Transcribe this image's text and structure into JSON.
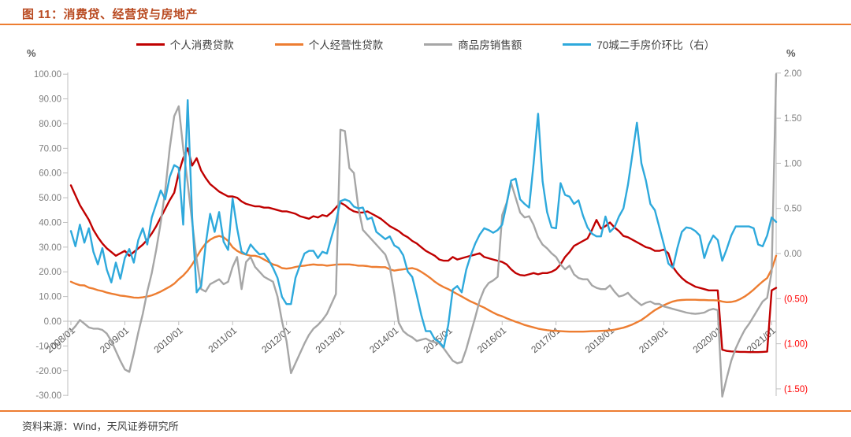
{
  "title": "图 11：消费贷、经营贷与房地产",
  "source": "资料来源：Wind，天风证券研究所",
  "colors": {
    "title_accent": "#b94a21",
    "rule_orange": "#ed7d31",
    "axis_line": "#bfbfbf",
    "tick_label": "#7f7f7f",
    "x_label": "#595959",
    "negative_right_label": "#ff0000"
  },
  "left_axis": {
    "unit": "%",
    "tick_labels": [
      "100.00",
      "90.00",
      "80.00",
      "70.00",
      "60.00",
      "50.00",
      "40.00",
      "30.00",
      "20.00",
      "10.00",
      "0.00",
      "-10.00",
      "-20.00",
      "-30.00"
    ],
    "tick_values": [
      100,
      90,
      80,
      70,
      60,
      50,
      40,
      30,
      20,
      10,
      0,
      -10,
      -20,
      -30
    ]
  },
  "right_axis": {
    "unit": "%",
    "tick_labels": [
      "2.00",
      "1.50",
      "1.00",
      "0.50",
      "0.00",
      "(0.50)",
      "(1.00)",
      "(1.50)"
    ],
    "tick_values": [
      2.0,
      1.5,
      1.0,
      0.5,
      0.0,
      -0.5,
      -1.0,
      -1.5
    ]
  },
  "chart_data": {
    "type": "line",
    "title": "消费贷、经营贷与房地产",
    "x_start": "2008/01",
    "x_end": "2021/02",
    "months_total": 158,
    "x_tick_labels": [
      "2008/01",
      "2009/01",
      "2010/01",
      "2011/01",
      "2012/01",
      "2013/01",
      "2014/01",
      "2015/01",
      "2016/01",
      "2017/01",
      "2018/01",
      "2019/01",
      "2020/01",
      "2021/01"
    ],
    "x_tick_month_index": [
      0,
      12,
      24,
      36,
      48,
      60,
      72,
      84,
      96,
      108,
      120,
      132,
      144,
      156
    ],
    "left_ylim": [
      -30,
      100
    ],
    "right_ylim": [
      -1.5,
      2.0
    ],
    "grid": "zero-line-only",
    "legend_position": "top",
    "series": [
      {
        "name": "个人消费贷款",
        "color": "#c00000",
        "axis": "left",
        "values": [
          55,
          51,
          47,
          44,
          41,
          37,
          34,
          31.5,
          29.5,
          28,
          26.5,
          27.5,
          28.5,
          26.5,
          28,
          29.5,
          31,
          33,
          35.5,
          38.5,
          42,
          45.5,
          49,
          52,
          60,
          66,
          70,
          63,
          66,
          61,
          58,
          55.5,
          54,
          52.5,
          51.5,
          50.5,
          50.5,
          50,
          48.5,
          47.5,
          47,
          46.5,
          46.5,
          46,
          46,
          45.5,
          45,
          44.5,
          44.5,
          44,
          43.5,
          42.5,
          42,
          41.5,
          42.5,
          42,
          43,
          42.5,
          44,
          46,
          48,
          47,
          45.5,
          44.5,
          44,
          44,
          44.5,
          43.5,
          42.5,
          41.5,
          40,
          38.5,
          37.5,
          36.5,
          35,
          34,
          32.5,
          31.5,
          30,
          28.5,
          27.5,
          26.5,
          25,
          24.5,
          24.5,
          26,
          25,
          25.5,
          26,
          26.5,
          27,
          27.5,
          26,
          25.5,
          25,
          24.5,
          24,
          23,
          21,
          19.5,
          18.7,
          18.5,
          19,
          19.5,
          19,
          19.5,
          19.5,
          20,
          21,
          23,
          26,
          28,
          30.5,
          31.5,
          32.5,
          33.5,
          37,
          41,
          37.5,
          38.5,
          40,
          38,
          36.5,
          34.5,
          34,
          33,
          32,
          31,
          30,
          29.5,
          28.5,
          28.5,
          29,
          27.5,
          22,
          19.5,
          17.5,
          16,
          15,
          14,
          13.5,
          13,
          12.5,
          12.5,
          12.5,
          -11.5,
          -12,
          -12.2,
          -12.3,
          -12.4,
          -12.4,
          -12.5,
          -12.5,
          -12.5,
          -12.4,
          -12.3,
          12.5,
          13.5
        ]
      },
      {
        "name": "个人经营性贷款",
        "color": "#ed7d31",
        "axis": "left",
        "values": [
          16,
          15.2,
          14.6,
          14.5,
          13.6,
          13.2,
          12.6,
          12.2,
          11.6,
          11.2,
          10.8,
          10.4,
          10.2,
          9.9,
          9.6,
          9.5,
          9.7,
          10,
          10.5,
          11.2,
          12,
          13,
          14,
          15.2,
          17,
          18.5,
          20.5,
          23,
          26,
          29,
          31.5,
          33,
          34,
          34.5,
          34,
          32.5,
          30,
          28.5,
          27.5,
          27,
          26.5,
          26.5,
          26,
          25,
          24,
          23,
          22.5,
          21.5,
          21.3,
          21.5,
          22,
          22.3,
          22.5,
          22.8,
          23,
          22.8,
          22.8,
          22.5,
          22.7,
          22.9,
          23,
          23,
          23,
          22.8,
          22.5,
          22.5,
          22.3,
          22,
          22,
          21.9,
          21.9,
          21,
          20.5,
          20.8,
          21,
          21.3,
          21.5,
          21,
          20,
          18.8,
          17.5,
          16,
          14.8,
          13.8,
          13,
          12,
          11,
          10,
          9,
          8,
          7.2,
          6.3,
          5.5,
          4.5,
          3.5,
          2.6,
          2,
          1.2,
          0.5,
          -0.2,
          -0.8,
          -1.5,
          -2,
          -2.5,
          -3,
          -3.3,
          -3.6,
          -3.8,
          -3.9,
          -4,
          -4.1,
          -4.2,
          -4.2,
          -4.2,
          -4.2,
          -4.1,
          -4,
          -4,
          -3.9,
          -3.8,
          -3.7,
          -3.4,
          -3,
          -2.6,
          -2,
          -1.3,
          -0.4,
          0.5,
          1.8,
          3.2,
          4.5,
          5.5,
          6.5,
          7.3,
          8,
          8.4,
          8.6,
          8.7,
          8.7,
          8.7,
          8.6,
          8.6,
          8.5,
          8.5,
          8.4,
          8,
          7.7,
          7.8,
          8.2,
          9,
          10,
          11.3,
          12.8,
          14.5,
          16.1,
          17.5,
          21,
          26.5
        ]
      },
      {
        "name": "商品房销售额",
        "color": "#a6a6a6",
        "axis": "left",
        "values": [
          -4,
          -2,
          0.5,
          -1,
          -2.5,
          -3,
          -3,
          -3.5,
          -5,
          -8,
          -12,
          -16,
          -19.5,
          -20.5,
          -13,
          -4.5,
          3,
          12,
          19.5,
          29,
          40,
          53,
          70,
          83,
          87,
          70,
          56,
          40,
          25,
          13,
          12,
          15,
          16,
          17,
          15,
          16,
          22,
          26,
          13,
          24,
          26,
          22,
          20,
          18,
          17,
          16,
          10,
          0,
          -8,
          -21,
          -17,
          -13,
          -9,
          -5.5,
          -3,
          -1.5,
          0.5,
          3,
          7,
          11,
          77.5,
          77,
          62,
          60,
          46,
          37,
          35,
          33,
          31,
          29,
          27,
          22,
          11.3,
          -0.6,
          -4,
          -5.5,
          -6.5,
          -8,
          -7.5,
          -7,
          -8,
          -8.5,
          -9,
          -11,
          -13.5,
          -16,
          -17,
          -16.5,
          -11.3,
          -4.8,
          1.6,
          8.4,
          13,
          15.5,
          16.5,
          18,
          43,
          48,
          56,
          50,
          44,
          42,
          42.5,
          39,
          34,
          31,
          29.5,
          27.5,
          26,
          23,
          21,
          22.5,
          19,
          17.5,
          17,
          17,
          14.5,
          13.5,
          13,
          13,
          14.5,
          12,
          10,
          10.5,
          11.5,
          9.5,
          8,
          6.5,
          7.5,
          8,
          7,
          7,
          6,
          5.5,
          5,
          4.5,
          4,
          3.5,
          3.2,
          3,
          3.2,
          3.5,
          4.5,
          5,
          4.5,
          -30.5,
          -23,
          -16,
          -11,
          -7,
          -3.5,
          -1,
          2,
          5,
          8,
          9.5,
          20,
          100
        ]
      },
      {
        "name": "70城二手房价环比（右）",
        "color": "#2ea9dc",
        "axis": "right",
        "values": [
          0.25,
          0.08,
          0.32,
          0.12,
          0.28,
          0.02,
          -0.12,
          0.06,
          -0.18,
          -0.32,
          -0.1,
          -0.28,
          -0.05,
          0.05,
          -0.1,
          0.15,
          0.28,
          0.1,
          0.4,
          0.55,
          0.7,
          0.6,
          0.85,
          0.98,
          0.95,
          0.32,
          1.7,
          0.4,
          -0.43,
          -0.36,
          0.1,
          0.44,
          0.24,
          0.46,
          0.13,
          0.04,
          0.61,
          0.28,
          0.02,
          -0.01,
          0.1,
          0.04,
          -0.01,
          0,
          -0.07,
          -0.16,
          -0.27,
          -0.48,
          -0.56,
          -0.56,
          -0.27,
          -0.13,
          0,
          0.03,
          0.03,
          -0.05,
          0.02,
          0,
          0.18,
          0.35,
          0.58,
          0.6,
          0.58,
          0.52,
          0.5,
          0.51,
          0.38,
          0.4,
          0.24,
          0.2,
          0.16,
          0.19,
          0.09,
          0.06,
          -0.02,
          -0.2,
          -0.26,
          -0.46,
          -0.68,
          -0.86,
          -0.86,
          -0.95,
          -0.98,
          -1.04,
          -0.79,
          -0.4,
          -0.36,
          -0.43,
          -0.18,
          -0.02,
          0.11,
          0.21,
          0.28,
          0.26,
          0.23,
          0.26,
          0.32,
          0.55,
          0.81,
          0.83,
          0.6,
          0.55,
          0.51,
          1,
          1.55,
          0.8,
          0.46,
          0.29,
          0.28,
          0.78,
          0.65,
          0.63,
          0.55,
          0.59,
          0.42,
          0.29,
          0.22,
          0.19,
          0.19,
          0.41,
          0.24,
          0.29,
          0.41,
          0.5,
          0.76,
          1.1,
          1.45,
          1,
          0.81,
          0.55,
          0.48,
          0.29,
          0.1,
          -0.11,
          -0.16,
          0.06,
          0.24,
          0.29,
          0.28,
          0.25,
          0.2,
          -0.05,
          0.1,
          0.2,
          0.15,
          -0.08,
          0.05,
          0.2,
          0.3,
          0.3,
          0.3,
          0.3,
          0.28,
          0.1,
          0.08,
          0.2,
          0.4,
          0.35
        ]
      }
    ]
  }
}
